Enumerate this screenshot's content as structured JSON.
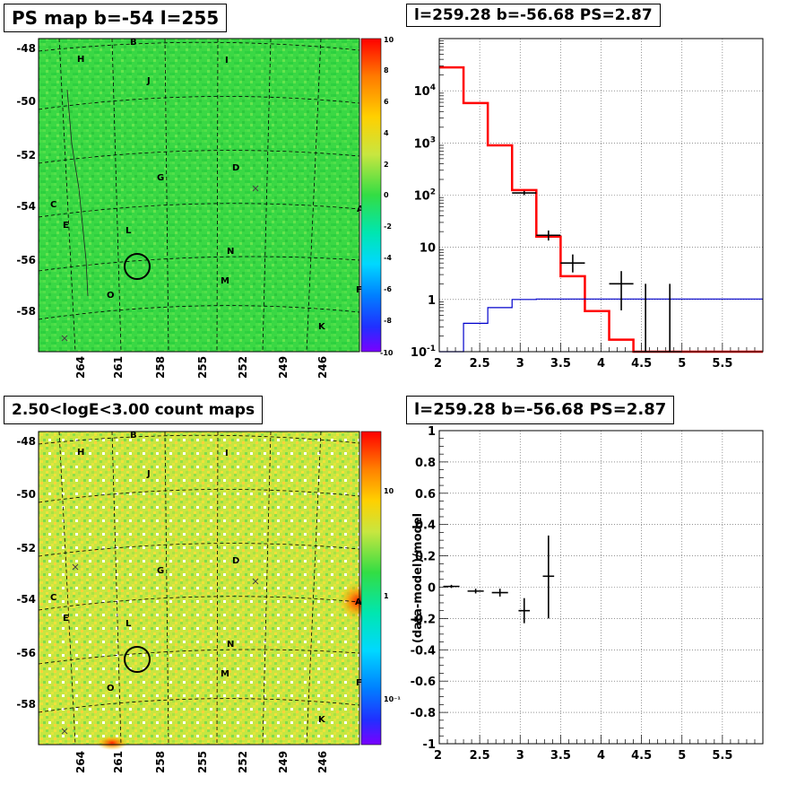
{
  "panels": {
    "top_left_title": "PS map b=-54 l=255",
    "top_right_title": "l=259.28 b=-56.68 PS=2.87",
    "bottom_left_title": "2.50<logE<3.00 count maps",
    "bottom_right_title": "l=259.28 b=-56.68 PS=2.87"
  },
  "sky_maps": {
    "lat_ticks": [
      "-48",
      "-50",
      "-52",
      "-54",
      "-56",
      "-58"
    ],
    "lon_ticks": [
      "264",
      "261",
      "258",
      "255",
      "252",
      "249",
      "246"
    ],
    "source_labels": [
      "B",
      "H",
      "I",
      "J",
      "D",
      "G",
      "C",
      "E",
      "L",
      "A",
      "N",
      "M",
      "O",
      "F",
      "K"
    ],
    "ps_colorbar_ticks": [
      "10",
      "8",
      "6",
      "4",
      "2",
      "0",
      "-2",
      "-4",
      "-6",
      "-8",
      "-10"
    ],
    "count_colorbar_ticks": [
      "10",
      "1",
      "10⁻¹"
    ],
    "colors": {
      "ps_background": "#33dd44",
      "count_background": "#c8e640",
      "circle": "#000000"
    }
  },
  "chart_data": [
    {
      "type": "line",
      "panel": "spectrum",
      "title": "l=259.28 b=-56.68 PS=2.87",
      "xlim": [
        2,
        6
      ],
      "ylim": [
        0.1,
        100000
      ],
      "yscale": "log",
      "grid": true,
      "x_ticks": [
        "2",
        "2.5",
        "3",
        "3.5",
        "4",
        "4.5",
        "5",
        "5.5"
      ],
      "y_ticks": [
        "10^-1",
        "1",
        "10",
        "10^2",
        "10^3",
        "10^4"
      ],
      "series": [
        {
          "role": "model",
          "color": "#ff0000",
          "edges": [
            2.0,
            2.3,
            2.6,
            2.9,
            3.2,
            3.5,
            3.8,
            4.1,
            4.4,
            6.0
          ],
          "values": [
            28000,
            5800,
            900,
            125,
            16,
            2.8,
            0.6,
            0.17,
            0.09
          ]
        },
        {
          "role": "background",
          "color": "#0000cc",
          "edges": [
            2.0,
            2.3,
            2.6,
            2.9,
            3.2,
            6.0
          ],
          "values": [
            0.05,
            0.35,
            0.7,
            1.0,
            1.02
          ]
        },
        {
          "role": "data",
          "color": "#000000",
          "x": [
            3.05,
            3.35,
            3.65,
            4.25,
            4.55,
            4.85
          ],
          "y": [
            110,
            17,
            5,
            2,
            0.1,
            0.1
          ],
          "xerr": [
            0.15,
            0.15,
            0.15,
            0.15,
            0.15,
            0.15
          ],
          "ylo": [
            100,
            13.5,
            3.3,
            0.62,
            0.1,
            0.1
          ],
          "yhi": [
            120,
            21,
            7.3,
            3.5,
            2.0,
            2.0
          ]
        }
      ]
    },
    {
      "type": "scatter",
      "panel": "residuals",
      "title": "l=259.28 b=-56.68 PS=2.87",
      "ylabel": "(data-model)/model",
      "xlim": [
        2,
        6
      ],
      "ylim": [
        -1,
        1
      ],
      "grid": true,
      "x_ticks": [
        "2",
        "2.5",
        "3",
        "3.5",
        "4",
        "4.5",
        "5",
        "5.5"
      ],
      "y_ticks": [
        "-1",
        "-0.8",
        "-0.6",
        "-0.4",
        "-0.2",
        "0",
        "0.2",
        "0.4",
        "0.6",
        "0.8",
        "1"
      ],
      "series": [
        {
          "role": "data",
          "color": "#000000",
          "x": [
            2.15,
            2.45,
            2.75,
            3.05,
            3.35
          ],
          "y": [
            0.005,
            -0.025,
            -0.035,
            -0.15,
            0.07
          ],
          "xerr": [
            0.1,
            0.1,
            0.1,
            0.07,
            0.07
          ],
          "ylo": [
            -0.005,
            -0.04,
            -0.06,
            -0.23,
            -0.2
          ],
          "yhi": [
            0.015,
            -0.01,
            -0.01,
            -0.07,
            0.33
          ]
        }
      ]
    }
  ]
}
